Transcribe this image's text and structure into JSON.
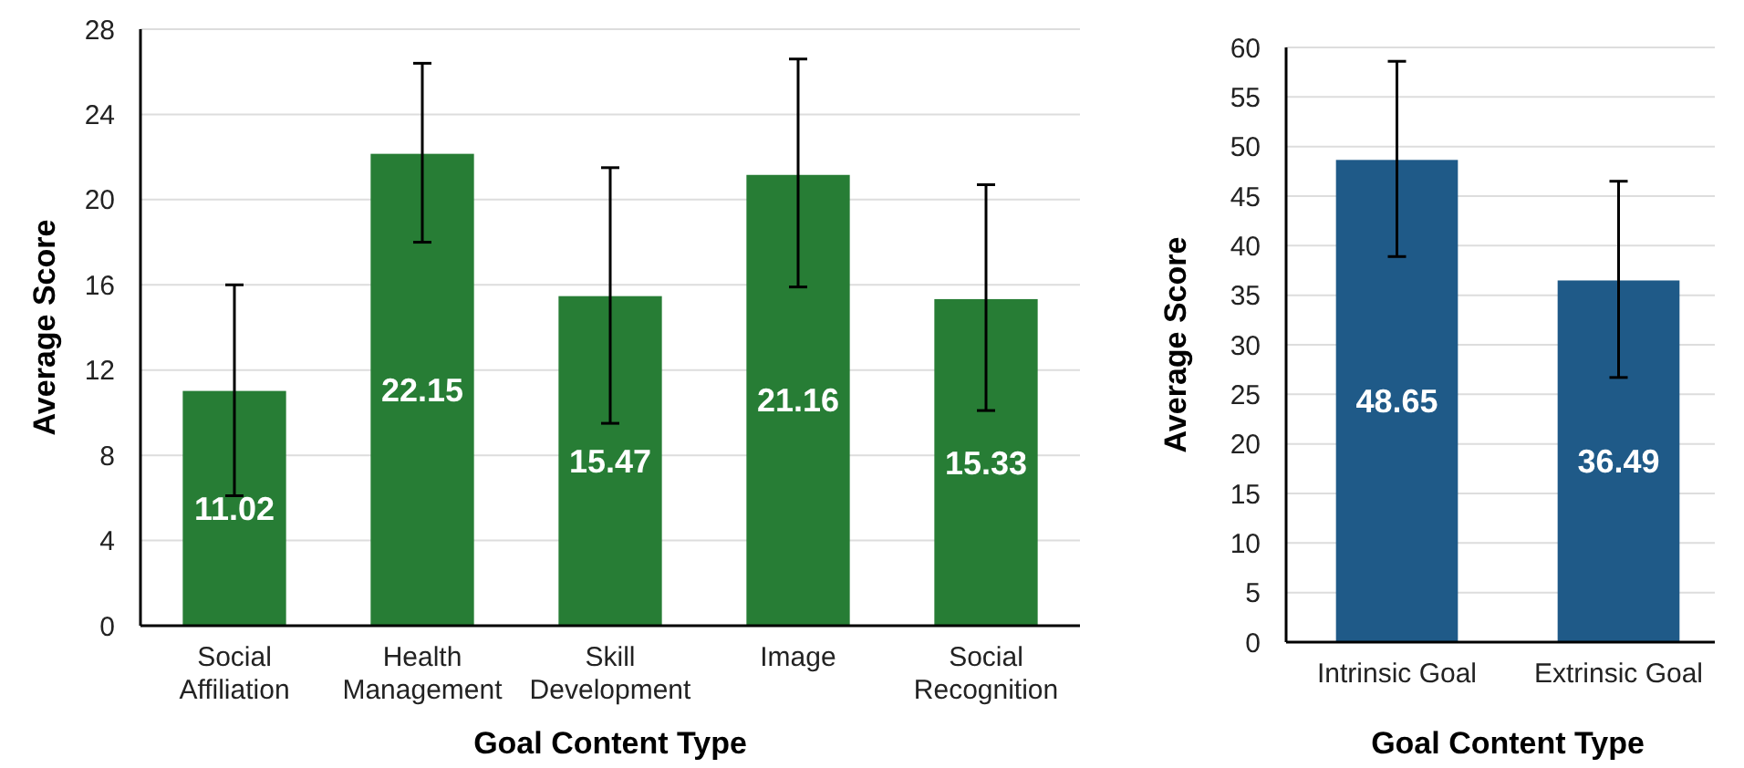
{
  "chart_data": [
    {
      "type": "bar",
      "xlabel": "Goal Content Type",
      "ylabel": "Average Score",
      "categories": [
        "Social\nAffiliation",
        "Health\nManagement",
        "Skill\nDevelopment",
        "Image",
        "Social\nRecognition"
      ],
      "values": [
        11.02,
        22.15,
        15.47,
        21.16,
        15.33
      ],
      "color": "#277d35",
      "errors": [
        [
          6.1,
          16
        ],
        [
          18,
          26.4
        ],
        [
          9.5,
          21.5
        ],
        [
          15.9,
          26.6
        ],
        [
          10.1,
          20.7
        ]
      ],
      "ylim": [
        0,
        28
      ],
      "yticks": [
        0,
        4,
        8,
        12,
        16,
        20,
        24,
        28
      ],
      "grid": "y",
      "data_labels": true
    },
    {
      "type": "bar",
      "xlabel": "Goal Content Type",
      "ylabel": "Average Score",
      "categories": [
        "Intrinsic Goal",
        "Extrinsic Goal"
      ],
      "values": [
        48.65,
        36.49
      ],
      "color": "#1f5a88",
      "errors": [
        [
          38.9,
          58.6
        ],
        [
          26.7,
          46.5
        ]
      ],
      "ylim": [
        0,
        60
      ],
      "yticks": [
        0,
        5,
        10,
        15,
        20,
        25,
        30,
        35,
        40,
        45,
        50,
        55,
        60
      ],
      "grid": "y",
      "data_labels": true
    }
  ]
}
